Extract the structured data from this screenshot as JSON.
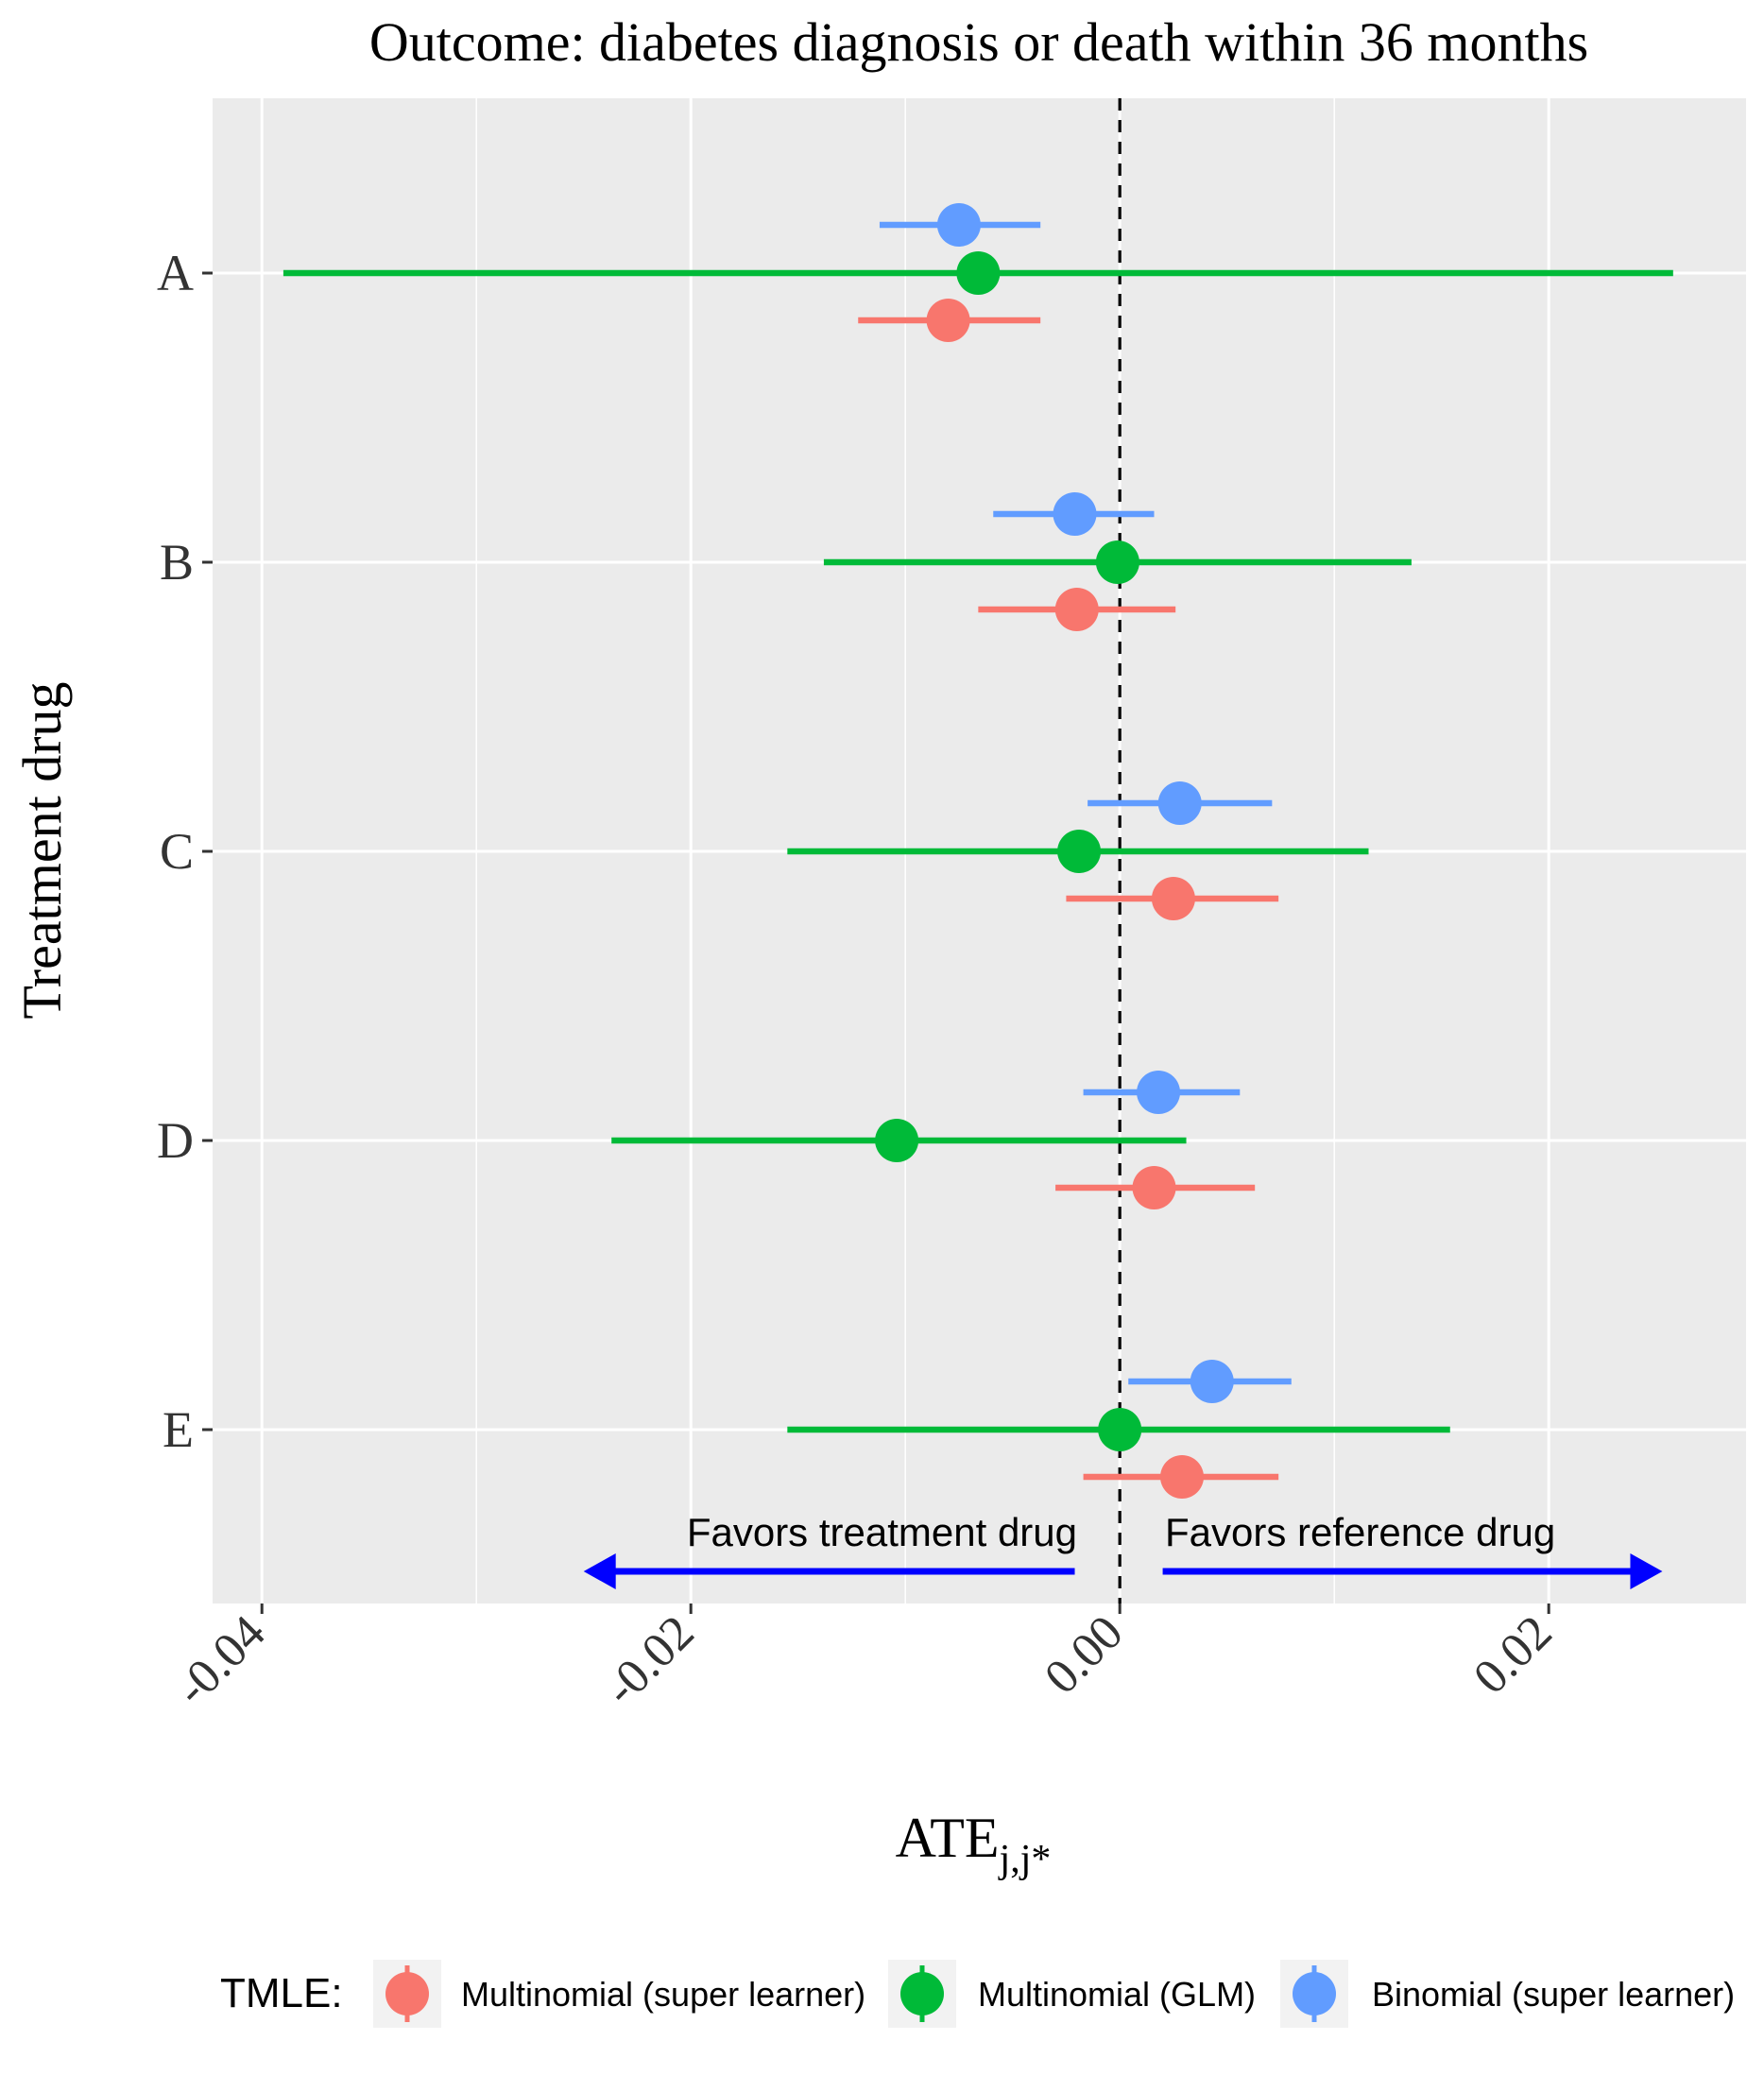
{
  "chart_data": {
    "type": "forest",
    "title": "Outcome: diabetes diagnosis or death within 36 months",
    "xlabel": "ATE",
    "xlabel_subscript": "j,j*",
    "ylabel": "Treatment drug",
    "xlim": [
      -0.0423,
      0.0292
    ],
    "x_ticks": [
      -0.04,
      -0.02,
      0.0,
      0.02
    ],
    "x_tick_labels": [
      "-0.04",
      "-0.02",
      "0.00",
      "0.02"
    ],
    "categories": [
      "A",
      "B",
      "C",
      "D",
      "E"
    ],
    "reference_line": 0.0,
    "grid": true,
    "legend": {
      "position": "bottom",
      "title": "TMLE:"
    },
    "annotations": {
      "left": "Favors treatment drug",
      "right": "Favors reference drug",
      "arrow_color": "#0000ff"
    },
    "series": [
      {
        "name": "Multinomial (super learner)",
        "color": "#f8766d",
        "estimates": [
          -0.008,
          -0.002,
          0.0025,
          0.0016,
          0.0029
        ],
        "lower": [
          -0.0122,
          -0.0066,
          -0.0025,
          -0.003,
          -0.0017
        ],
        "upper": [
          -0.0037,
          0.0026,
          0.0074,
          0.0063,
          0.0074
        ]
      },
      {
        "name": "Multinomial (GLM)",
        "color": "#00ba38",
        "estimates": [
          -0.0066,
          -0.0001,
          -0.0019,
          -0.0104,
          0.0
        ],
        "lower": [
          -0.039,
          -0.0138,
          -0.0155,
          -0.0237,
          -0.0155
        ],
        "upper": [
          0.0258,
          0.0136,
          0.0116,
          0.0031,
          0.0154
        ]
      },
      {
        "name": "Binomial (super learner)",
        "color": "#619cff",
        "estimates": [
          -0.0075,
          -0.0021,
          0.0028,
          0.0018,
          0.0043
        ],
        "lower": [
          -0.0112,
          -0.0059,
          -0.0015,
          -0.0017,
          0.0004
        ],
        "upper": [
          -0.0037,
          0.0016,
          0.0071,
          0.0056,
          0.008
        ]
      }
    ]
  }
}
